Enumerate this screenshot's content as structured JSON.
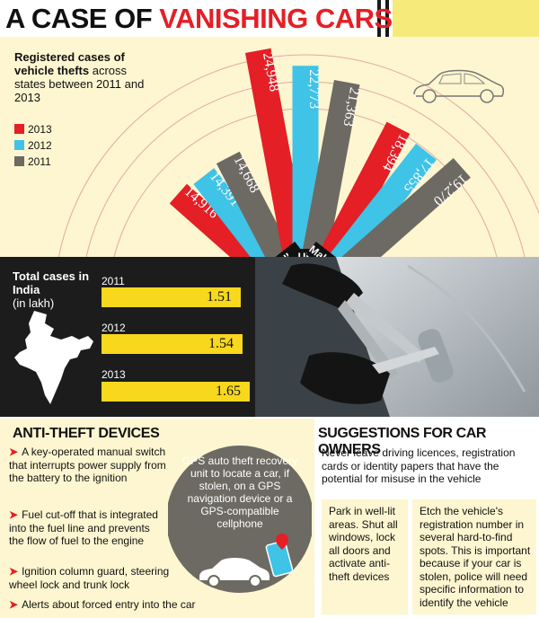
{
  "header": {
    "title_part1": "A CASE OF",
    "title_part2": "VANISHING CARS",
    "accent": "#e41f26"
  },
  "chart_data": {
    "type": "bar",
    "description_bold": "Registered cases of vehicle thefts",
    "description_rest": "across states between 2011 and 2013",
    "colors": {
      "2013": "#e41f26",
      "2012": "#3fc3e6",
      "2011": "#6d6a63"
    },
    "series_order": [
      "2011",
      "2012",
      "2013"
    ],
    "categories": [
      "New Delhi",
      "UP",
      "Maharashtra"
    ],
    "series": [
      {
        "name": "2013",
        "values": [
          14916,
          24948,
          18394
        ]
      },
      {
        "name": "2012",
        "values": [
          14391,
          22773,
          17855
        ]
      },
      {
        "name": "2011",
        "values": [
          14668,
          21363,
          19270
        ]
      }
    ],
    "value_labels": {
      "New Delhi": {
        "2013": "14,916",
        "2012": "14,391",
        "2011": "14,668"
      },
      "UP": {
        "2013": "24,948",
        "2012": "22,773",
        "2011": "21,363"
      },
      "Maharashtra": {
        "2013": "18,394",
        "2012": "17,855",
        "2011": "19,270"
      }
    },
    "legend": [
      "2013",
      "2012",
      "2011"
    ]
  },
  "india_totals": {
    "label_bold": "Total cases in India",
    "label_unit": "(in lakh)",
    "bar_color": "#f7d81c",
    "rows": [
      {
        "year": "2011",
        "value": 1.51,
        "value_text": "1.51"
      },
      {
        "year": "2012",
        "value": 1.54,
        "value_text": "1.54"
      },
      {
        "year": "2013",
        "value": 1.65,
        "value_text": "1.65"
      }
    ]
  },
  "anti_theft": {
    "title": "ANTI-THEFT DEVICES",
    "items": [
      "A key-operated manual switch that interrupts power supply from the  battery to the ignition",
      "Fuel cut-off that is integrated into the fuel line and prevents the flow of fuel to the engine",
      "Ignition column guard, steering wheel lock and trunk lock",
      "Alerts about forced entry into the car"
    ],
    "gps_text": "GPS auto theft recovery unit to locate a car, if stolen, on a GPS navigation device or a GPS-compatible cellphone"
  },
  "suggestions": {
    "title": "SUGGESTIONS FOR CAR OWNERS",
    "lead": "Never leave driving licences, registration cards or identity papers that have the potential for misuse in the vehicle",
    "box_a": "Park in well-lit areas. Shut all windows, lock all doors and activate anti-theft devices",
    "box_b": "Etch the vehicle's registration number in several hard-to-find spots. This is important because if your car is stolen, police will need specific information to identify the vehicle"
  }
}
